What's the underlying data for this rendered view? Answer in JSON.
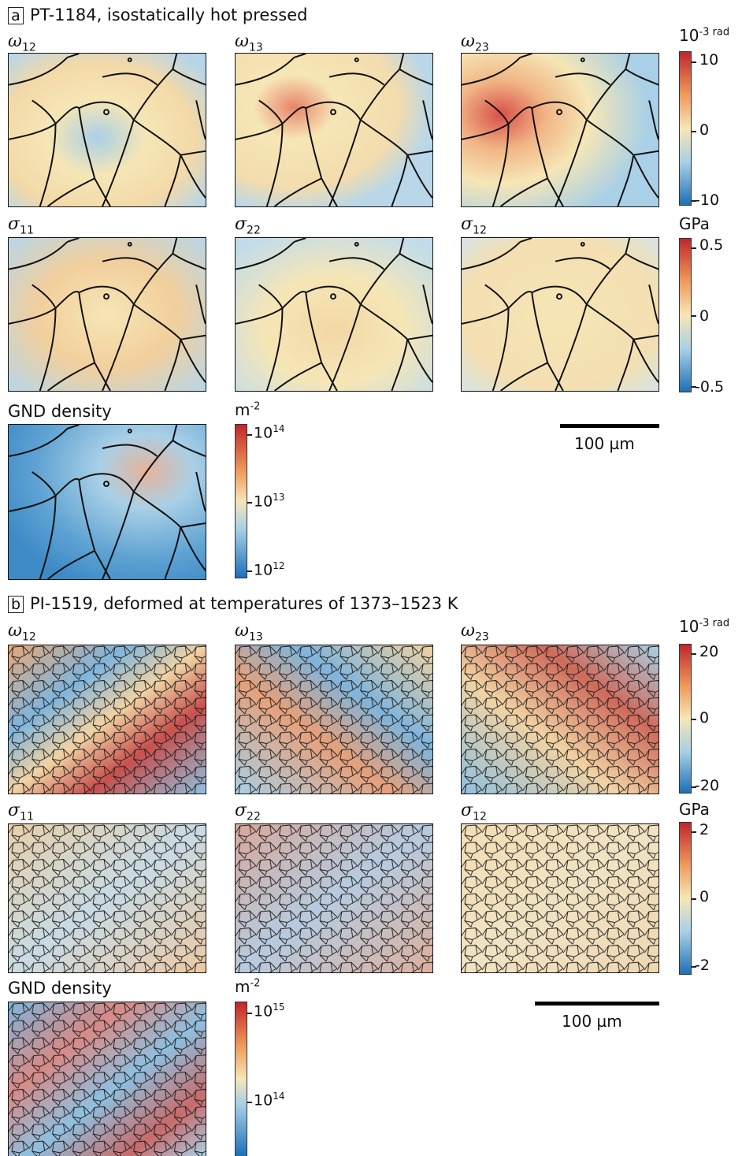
{
  "panel_a": {
    "letter": "a",
    "title": "PT-1184, isostatically hot pressed",
    "rotation_labels": [
      "ω",
      "ω",
      "ω"
    ],
    "rotation_subs": [
      "12",
      "13",
      "23"
    ],
    "stress_labels": [
      "σ",
      "σ",
      "σ"
    ],
    "stress_subs": [
      "11",
      "22",
      "12"
    ],
    "gnd_label": "GND density",
    "rotation_unit_base": "10",
    "rotation_unit_sup": "-3 rad",
    "rotation_ticks": [
      "10",
      "0",
      "-10"
    ],
    "stress_unit": "GPa",
    "stress_ticks": [
      "0.5",
      "0",
      "-0.5"
    ],
    "gnd_unit_base": "m",
    "gnd_unit_sup": "-2",
    "gnd_ticks": [
      {
        "base": "10",
        "exp": "14"
      },
      {
        "base": "10",
        "exp": "13"
      },
      {
        "base": "10",
        "exp": "12"
      }
    ],
    "scale_bar": "100 µm"
  },
  "panel_b": {
    "letter": "b",
    "title": "PI-1519, deformed at temperatures of 1373–1523 K",
    "rotation_labels": [
      "ω",
      "ω",
      "ω"
    ],
    "rotation_subs": [
      "12",
      "13",
      "23"
    ],
    "stress_labels": [
      "σ",
      "σ",
      "σ"
    ],
    "stress_subs": [
      "11",
      "22",
      "12"
    ],
    "gnd_label": "GND density",
    "rotation_unit_base": "10",
    "rotation_unit_sup": "-3 rad",
    "rotation_ticks": [
      "20",
      "0",
      "-20"
    ],
    "stress_unit": "GPa",
    "stress_ticks": [
      "2",
      "0",
      "-2"
    ],
    "gnd_unit_base": "m",
    "gnd_unit_sup": "-2",
    "gnd_ticks": [
      {
        "base": "10",
        "exp": "15"
      },
      {
        "base": "10",
        "exp": "14"
      }
    ],
    "scale_bar": "100 µm"
  },
  "colors": {
    "red": "#c0262d",
    "orange": "#ef9a5a",
    "neutral": "#f6e6b6",
    "light_blue": "#a9d0e6",
    "blue": "#1d70b8"
  }
}
